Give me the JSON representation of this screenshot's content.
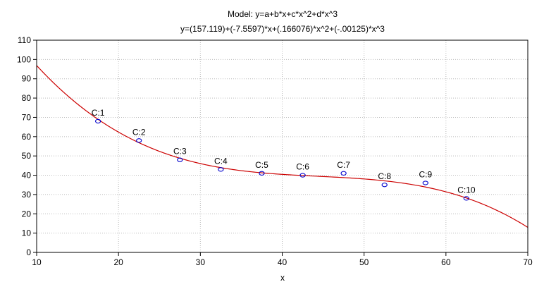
{
  "chart_data": {
    "type": "scatter",
    "title": "Model: y=a+b*x+c*x^2+d*x^3",
    "subtitle": "y=(157.119)+(-7.5597)*x+(.166076)*x^2+(-.00125)*x^3",
    "xlabel": "x",
    "ylabel": "",
    "xlim": [
      10,
      70
    ],
    "ylim": [
      0,
      110
    ],
    "xticks": [
      10,
      20,
      30,
      40,
      50,
      60,
      70
    ],
    "yticks": [
      0,
      10,
      20,
      30,
      40,
      50,
      60,
      70,
      80,
      90,
      100,
      110
    ],
    "grid": true,
    "points": [
      {
        "label": "C:1",
        "x": 17.5,
        "y": 68
      },
      {
        "label": "C:2",
        "x": 22.5,
        "y": 58
      },
      {
        "label": "C:3",
        "x": 27.5,
        "y": 48
      },
      {
        "label": "C:4",
        "x": 32.5,
        "y": 43
      },
      {
        "label": "C:5",
        "x": 37.5,
        "y": 41
      },
      {
        "label": "C:6",
        "x": 42.5,
        "y": 40
      },
      {
        "label": "C:7",
        "x": 47.5,
        "y": 41
      },
      {
        "label": "C:8",
        "x": 52.5,
        "y": 35
      },
      {
        "label": "C:9",
        "x": 57.5,
        "y": 36
      },
      {
        "label": "C:10",
        "x": 62.5,
        "y": 28
      }
    ],
    "fit": {
      "a": 157.119,
      "b": -7.5597,
      "c": 0.166076,
      "d": -0.00125
    },
    "colors": {
      "fit_line": "#cc0000",
      "points": "#0000cc",
      "grid": "#bbbbbb",
      "frame": "#000000"
    }
  }
}
